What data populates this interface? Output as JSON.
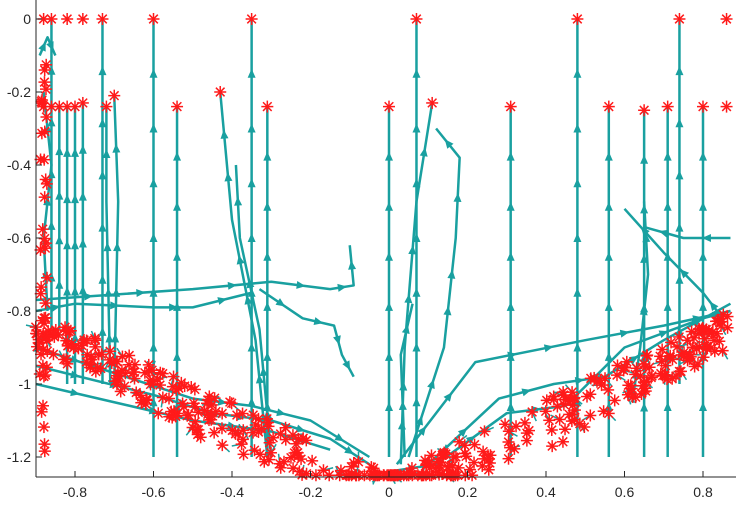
{
  "chart_data": {
    "type": "line",
    "title": "",
    "xlabel": "",
    "ylabel": "",
    "xlim": [
      -0.9,
      0.87
    ],
    "ylim": [
      -1.25,
      0.0
    ],
    "grid": false,
    "legend": "none",
    "x_ticks": [
      {
        "value": -0.8,
        "label": "-0.8"
      },
      {
        "value": -0.6,
        "label": "-0.6"
      },
      {
        "value": -0.4,
        "label": "-0.4"
      },
      {
        "value": -0.2,
        "label": "-0.2"
      },
      {
        "value": 0,
        "label": "0"
      },
      {
        "value": 0.2,
        "label": "0.2"
      },
      {
        "value": 0.4,
        "label": "0.4"
      },
      {
        "value": 0.6,
        "label": "0.6"
      },
      {
        "value": 0.8,
        "label": "0.8"
      }
    ],
    "y_ticks": [
      {
        "value": 0,
        "label": "0"
      },
      {
        "value": -0.2,
        "label": "-0.2"
      },
      {
        "value": -0.4,
        "label": "-0.4"
      },
      {
        "value": -0.6,
        "label": "-0.6"
      },
      {
        "value": -0.8,
        "label": "-0.8"
      },
      {
        "value": -1,
        "label": "-1"
      },
      {
        "value": -1.2,
        "label": "-1.2"
      }
    ],
    "colors": {
      "trajectory": "#19a0a0",
      "marker": "#ff1a1a",
      "axis": "#262626"
    },
    "endpoints": [
      {
        "x": -0.88,
        "y": 0.0
      },
      {
        "x": -0.86,
        "y": 0.0
      },
      {
        "x": -0.82,
        "y": 0.0
      },
      {
        "x": -0.78,
        "y": 0.0
      },
      {
        "x": -0.73,
        "y": 0.0
      },
      {
        "x": -0.6,
        "y": 0.0
      },
      {
        "x": -0.35,
        "y": 0.0
      },
      {
        "x": 0.07,
        "y": 0.0
      },
      {
        "x": 0.48,
        "y": 0.0
      },
      {
        "x": 0.74,
        "y": 0.0
      },
      {
        "x": 0.86,
        "y": 0.0
      },
      {
        "x": -0.88,
        "y": -0.24
      },
      {
        "x": -0.86,
        "y": -0.24
      },
      {
        "x": -0.84,
        "y": -0.24
      },
      {
        "x": -0.82,
        "y": -0.24
      },
      {
        "x": -0.8,
        "y": -0.24
      },
      {
        "x": -0.78,
        "y": -0.23
      },
      {
        "x": -0.72,
        "y": -0.24
      },
      {
        "x": -0.7,
        "y": -0.21
      },
      {
        "x": -0.54,
        "y": -0.24
      },
      {
        "x": -0.43,
        "y": -0.2
      },
      {
        "x": -0.31,
        "y": -0.24
      },
      {
        "x": 0.0,
        "y": -0.24
      },
      {
        "x": 0.11,
        "y": -0.23
      },
      {
        "x": 0.31,
        "y": -0.24
      },
      {
        "x": 0.56,
        "y": -0.24
      },
      {
        "x": 0.65,
        "y": -0.25
      },
      {
        "x": 0.71,
        "y": -0.24
      },
      {
        "x": 0.8,
        "y": -0.24
      },
      {
        "x": 0.86,
        "y": -0.24
      }
    ],
    "series": [
      {
        "points": [
          [
            -0.6,
            -1.2
          ],
          [
            -0.6,
            0.0
          ]
        ]
      },
      {
        "points": [
          [
            -0.73,
            -1.0
          ],
          [
            -0.73,
            0.0
          ]
        ]
      },
      {
        "points": [
          [
            -0.35,
            -1.2
          ],
          [
            -0.35,
            0.0
          ]
        ]
      },
      {
        "points": [
          [
            0.07,
            -1.2
          ],
          [
            0.07,
            0.0
          ]
        ]
      },
      {
        "points": [
          [
            0.48,
            -1.2
          ],
          [
            0.48,
            0.0
          ]
        ]
      },
      {
        "points": [
          [
            0.74,
            -1.0
          ],
          [
            0.74,
            0.0
          ]
        ]
      },
      {
        "points": [
          [
            -0.54,
            -1.2
          ],
          [
            -0.54,
            -0.24
          ]
        ]
      },
      {
        "points": [
          [
            -0.31,
            -1.2
          ],
          [
            -0.31,
            -0.24
          ]
        ]
      },
      {
        "points": [
          [
            0.0,
            -1.2
          ],
          [
            0.0,
            -0.24
          ]
        ]
      },
      {
        "points": [
          [
            0.31,
            -1.2
          ],
          [
            0.31,
            -0.24
          ]
        ]
      },
      {
        "points": [
          [
            0.56,
            -1.2
          ],
          [
            0.56,
            -0.24
          ]
        ]
      },
      {
        "points": [
          [
            0.71,
            -1.2
          ],
          [
            0.71,
            -0.24
          ]
        ]
      },
      {
        "points": [
          [
            0.8,
            -1.2
          ],
          [
            0.8,
            -0.24
          ]
        ]
      },
      {
        "points": [
          [
            -0.82,
            -1.0
          ],
          [
            -0.82,
            -0.24
          ]
        ]
      },
      {
        "points": [
          [
            -0.8,
            -1.0
          ],
          [
            -0.8,
            -0.24
          ]
        ]
      },
      {
        "points": [
          [
            -0.78,
            -1.0
          ],
          [
            -0.78,
            -0.23
          ]
        ]
      },
      {
        "points": [
          [
            -0.86,
            -0.85
          ],
          [
            -0.86,
            0.0
          ]
        ]
      },
      {
        "points": [
          [
            -0.84,
            -0.85
          ],
          [
            -0.84,
            -0.24
          ]
        ]
      },
      {
        "points": [
          [
            -0.71,
            -1.0
          ],
          [
            -0.72,
            -0.5
          ],
          [
            -0.72,
            -0.24
          ]
        ]
      },
      {
        "points": [
          [
            -0.7,
            -1.0
          ],
          [
            -0.69,
            -0.5
          ],
          [
            -0.7,
            -0.21
          ]
        ]
      },
      {
        "points": [
          [
            -0.31,
            -1.2
          ],
          [
            -0.34,
            -0.88
          ],
          [
            -0.4,
            -0.55
          ],
          [
            -0.43,
            -0.2
          ]
        ]
      },
      {
        "points": [
          [
            -0.3,
            -1.2
          ],
          [
            -0.33,
            -0.85
          ],
          [
            -0.38,
            -0.6
          ],
          [
            -0.39,
            -0.4
          ]
        ]
      },
      {
        "points": [
          [
            0.03,
            -1.22
          ],
          [
            0.04,
            -0.9
          ],
          [
            0.07,
            -0.5
          ],
          [
            0.11,
            -0.23
          ]
        ]
      },
      {
        "points": [
          [
            0.05,
            -1.2
          ],
          [
            0.14,
            -0.9
          ],
          [
            0.17,
            -0.6
          ],
          [
            0.18,
            -0.38
          ],
          [
            0.12,
            -0.3
          ]
        ]
      },
      {
        "points": [
          [
            0.65,
            -1.2
          ],
          [
            0.65,
            -0.25
          ]
        ]
      },
      {
        "points": [
          [
            0.62,
            -1.05
          ],
          [
            0.64,
            -0.9
          ],
          [
            0.66,
            -0.7
          ],
          [
            0.65,
            -0.5
          ]
        ]
      },
      {
        "points": [
          [
            0.85,
            -0.82
          ],
          [
            0.8,
            -0.75
          ],
          [
            0.7,
            -0.64
          ],
          [
            0.6,
            -0.52
          ]
        ]
      },
      {
        "points": [
          [
            0.87,
            -0.6
          ],
          [
            0.75,
            -0.6
          ],
          [
            0.65,
            -0.57
          ]
        ]
      },
      {
        "points": [
          [
            -0.9,
            -0.8
          ],
          [
            -0.8,
            -0.78
          ],
          [
            -0.6,
            -0.79
          ],
          [
            -0.5,
            -0.79
          ],
          [
            -0.35,
            -0.75
          ]
        ]
      },
      {
        "points": [
          [
            -0.9,
            -0.77
          ],
          [
            -0.5,
            -0.74
          ],
          [
            -0.3,
            -0.72
          ],
          [
            -0.15,
            -0.74
          ],
          [
            -0.09,
            -0.73
          ],
          [
            -0.1,
            -0.62
          ]
        ]
      },
      {
        "points": [
          [
            -0.33,
            -0.74
          ],
          [
            -0.22,
            -0.82
          ],
          [
            -0.14,
            -0.84
          ],
          [
            -0.12,
            -0.92
          ],
          [
            -0.09,
            -0.98
          ]
        ]
      },
      {
        "points": [
          [
            0.0,
            -1.24
          ],
          [
            0.12,
            -1.22
          ],
          [
            0.3,
            -1.08
          ],
          [
            0.45,
            -1.06
          ],
          [
            0.6,
            -0.9
          ],
          [
            0.8,
            -0.82
          ],
          [
            0.87,
            -0.8
          ]
        ]
      },
      {
        "points": [
          [
            0.02,
            -1.22
          ],
          [
            0.22,
            -0.94
          ],
          [
            0.5,
            -0.88
          ],
          [
            0.7,
            -0.84
          ],
          [
            0.87,
            -0.8
          ]
        ]
      },
      {
        "points": [
          [
            0.1,
            -1.22
          ],
          [
            0.28,
            -1.04
          ],
          [
            0.42,
            -1.0
          ],
          [
            0.55,
            -0.98
          ],
          [
            0.7,
            -0.88
          ],
          [
            0.87,
            -0.78
          ]
        ]
      },
      {
        "points": [
          [
            -0.9,
            -0.9
          ],
          [
            -0.7,
            -0.97
          ],
          [
            -0.5,
            -1.04
          ],
          [
            -0.35,
            -1.06
          ],
          [
            -0.2,
            -1.1
          ],
          [
            -0.05,
            -1.2
          ]
        ]
      },
      {
        "points": [
          [
            -0.9,
            -0.95
          ],
          [
            -0.6,
            -1.03
          ],
          [
            -0.45,
            -1.08
          ],
          [
            -0.3,
            -1.1
          ],
          [
            -0.15,
            -1.15
          ],
          [
            -0.05,
            -1.22
          ]
        ]
      },
      {
        "points": [
          [
            -0.9,
            -1.0
          ],
          [
            -0.7,
            -1.05
          ],
          [
            -0.5,
            -1.1
          ],
          [
            -0.3,
            -1.13
          ],
          [
            -0.15,
            -1.18
          ]
        ]
      },
      {
        "points": [
          [
            0.04,
            -1.2
          ],
          [
            0.03,
            -0.92
          ],
          [
            0.06,
            -0.78
          ]
        ]
      },
      {
        "points": [
          [
            -0.87,
            -0.8
          ],
          [
            -0.88,
            -0.6
          ],
          [
            -0.86,
            -0.4
          ],
          [
            -0.88,
            -0.2
          ]
        ]
      },
      {
        "points": [
          [
            -0.89,
            -0.1
          ],
          [
            -0.87,
            -0.05
          ],
          [
            -0.85,
            -0.1
          ]
        ]
      }
    ],
    "cluster_regions": [
      {
        "from": [
          -0.9,
          -0.8
        ],
        "to": [
          0.0,
          -1.25
        ]
      },
      {
        "from": [
          0.0,
          -1.25
        ],
        "to": [
          0.87,
          -0.8
        ]
      }
    ]
  }
}
